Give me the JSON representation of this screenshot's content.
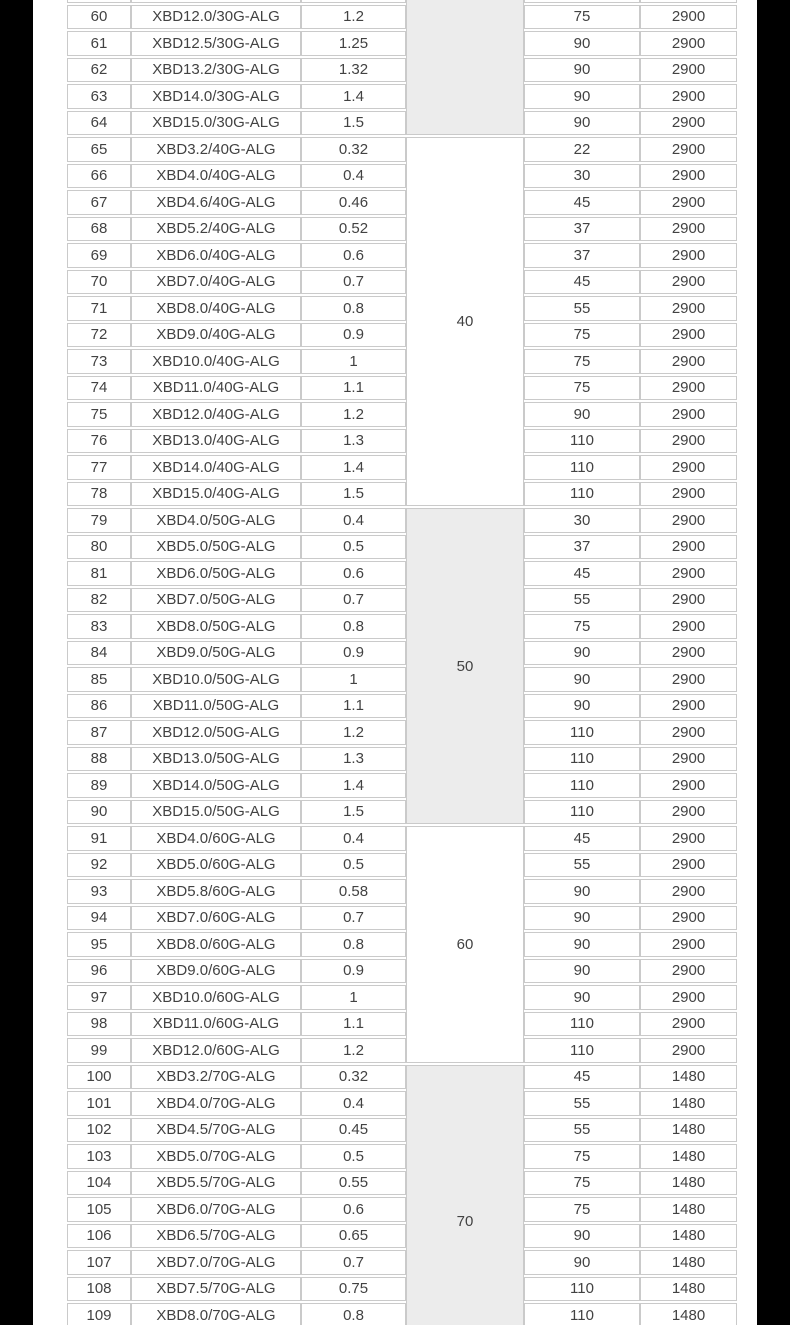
{
  "colors": {
    "side_band": "#000000",
    "page_background": "#ffffff",
    "cell_border": "#cacaca",
    "group_shaded_background": "#ececec",
    "text": "#424242"
  },
  "table": {
    "row_fields": [
      "no",
      "model",
      "value",
      "power",
      "speed"
    ],
    "groups": [
      {
        "label": "",
        "shaded": true,
        "rows": [
          [
            "60",
            "XBD12.0/30G-ALG",
            "1.2",
            "75",
            "2900"
          ],
          [
            "61",
            "XBD12.5/30G-ALG",
            "1.25",
            "90",
            "2900"
          ],
          [
            "62",
            "XBD13.2/30G-ALG",
            "1.32",
            "90",
            "2900"
          ],
          [
            "63",
            "XBD14.0/30G-ALG",
            "1.4",
            "90",
            "2900"
          ],
          [
            "64",
            "XBD15.0/30G-ALG",
            "1.5",
            "90",
            "2900"
          ]
        ]
      },
      {
        "label": "40",
        "shaded": false,
        "rows": [
          [
            "65",
            "XBD3.2/40G-ALG",
            "0.32",
            "22",
            "2900"
          ],
          [
            "66",
            "XBD4.0/40G-ALG",
            "0.4",
            "30",
            "2900"
          ],
          [
            "67",
            "XBD4.6/40G-ALG",
            "0.46",
            "45",
            "2900"
          ],
          [
            "68",
            "XBD5.2/40G-ALG",
            "0.52",
            "37",
            "2900"
          ],
          [
            "69",
            "XBD6.0/40G-ALG",
            "0.6",
            "37",
            "2900"
          ],
          [
            "70",
            "XBD7.0/40G-ALG",
            "0.7",
            "45",
            "2900"
          ],
          [
            "71",
            "XBD8.0/40G-ALG",
            "0.8",
            "55",
            "2900"
          ],
          [
            "72",
            "XBD9.0/40G-ALG",
            "0.9",
            "75",
            "2900"
          ],
          [
            "73",
            "XBD10.0/40G-ALG",
            "1",
            "75",
            "2900"
          ],
          [
            "74",
            "XBD11.0/40G-ALG",
            "1.1",
            "75",
            "2900"
          ],
          [
            "75",
            "XBD12.0/40G-ALG",
            "1.2",
            "90",
            "2900"
          ],
          [
            "76",
            "XBD13.0/40G-ALG",
            "1.3",
            "110",
            "2900"
          ],
          [
            "77",
            "XBD14.0/40G-ALG",
            "1.4",
            "110",
            "2900"
          ],
          [
            "78",
            "XBD15.0/40G-ALG",
            "1.5",
            "110",
            "2900"
          ]
        ]
      },
      {
        "label": "50",
        "shaded": true,
        "rows": [
          [
            "79",
            "XBD4.0/50G-ALG",
            "0.4",
            "30",
            "2900"
          ],
          [
            "80",
            "XBD5.0/50G-ALG",
            "0.5",
            "37",
            "2900"
          ],
          [
            "81",
            "XBD6.0/50G-ALG",
            "0.6",
            "45",
            "2900"
          ],
          [
            "82",
            "XBD7.0/50G-ALG",
            "0.7",
            "55",
            "2900"
          ],
          [
            "83",
            "XBD8.0/50G-ALG",
            "0.8",
            "75",
            "2900"
          ],
          [
            "84",
            "XBD9.0/50G-ALG",
            "0.9",
            "90",
            "2900"
          ],
          [
            "85",
            "XBD10.0/50G-ALG",
            "1",
            "90",
            "2900"
          ],
          [
            "86",
            "XBD11.0/50G-ALG",
            "1.1",
            "90",
            "2900"
          ],
          [
            "87",
            "XBD12.0/50G-ALG",
            "1.2",
            "110",
            "2900"
          ],
          [
            "88",
            "XBD13.0/50G-ALG",
            "1.3",
            "110",
            "2900"
          ],
          [
            "89",
            "XBD14.0/50G-ALG",
            "1.4",
            "110",
            "2900"
          ],
          [
            "90",
            "XBD15.0/50G-ALG",
            "1.5",
            "110",
            "2900"
          ]
        ]
      },
      {
        "label": "60",
        "shaded": false,
        "rows": [
          [
            "91",
            "XBD4.0/60G-ALG",
            "0.4",
            "45",
            "2900"
          ],
          [
            "92",
            "XBD5.0/60G-ALG",
            "0.5",
            "55",
            "2900"
          ],
          [
            "93",
            "XBD5.8/60G-ALG",
            "0.58",
            "90",
            "2900"
          ],
          [
            "94",
            "XBD7.0/60G-ALG",
            "0.7",
            "90",
            "2900"
          ],
          [
            "95",
            "XBD8.0/60G-ALG",
            "0.8",
            "90",
            "2900"
          ],
          [
            "96",
            "XBD9.0/60G-ALG",
            "0.9",
            "90",
            "2900"
          ],
          [
            "97",
            "XBD10.0/60G-ALG",
            "1",
            "90",
            "2900"
          ],
          [
            "98",
            "XBD11.0/60G-ALG",
            "1.1",
            "110",
            "2900"
          ],
          [
            "99",
            "XBD12.0/60G-ALG",
            "1.2",
            "110",
            "2900"
          ]
        ]
      },
      {
        "label": "70",
        "shaded": true,
        "rows": [
          [
            "100",
            "XBD3.2/70G-ALG",
            "0.32",
            "45",
            "1480"
          ],
          [
            "101",
            "XBD4.0/70G-ALG",
            "0.4",
            "55",
            "1480"
          ],
          [
            "102",
            "XBD4.5/70G-ALG",
            "0.45",
            "55",
            "1480"
          ],
          [
            "103",
            "XBD5.0/70G-ALG",
            "0.5",
            "75",
            "1480"
          ],
          [
            "104",
            "XBD5.5/70G-ALG",
            "0.55",
            "75",
            "1480"
          ],
          [
            "105",
            "XBD6.0/70G-ALG",
            "0.6",
            "75",
            "1480"
          ],
          [
            "106",
            "XBD6.5/70G-ALG",
            "0.65",
            "90",
            "1480"
          ],
          [
            "107",
            "XBD7.0/70G-ALG",
            "0.7",
            "90",
            "1480"
          ],
          [
            "108",
            "XBD7.5/70G-ALG",
            "0.75",
            "110",
            "1480"
          ],
          [
            "109",
            "XBD8.0/70G-ALG",
            "0.8",
            "110",
            "1480"
          ]
        ]
      }
    ]
  }
}
